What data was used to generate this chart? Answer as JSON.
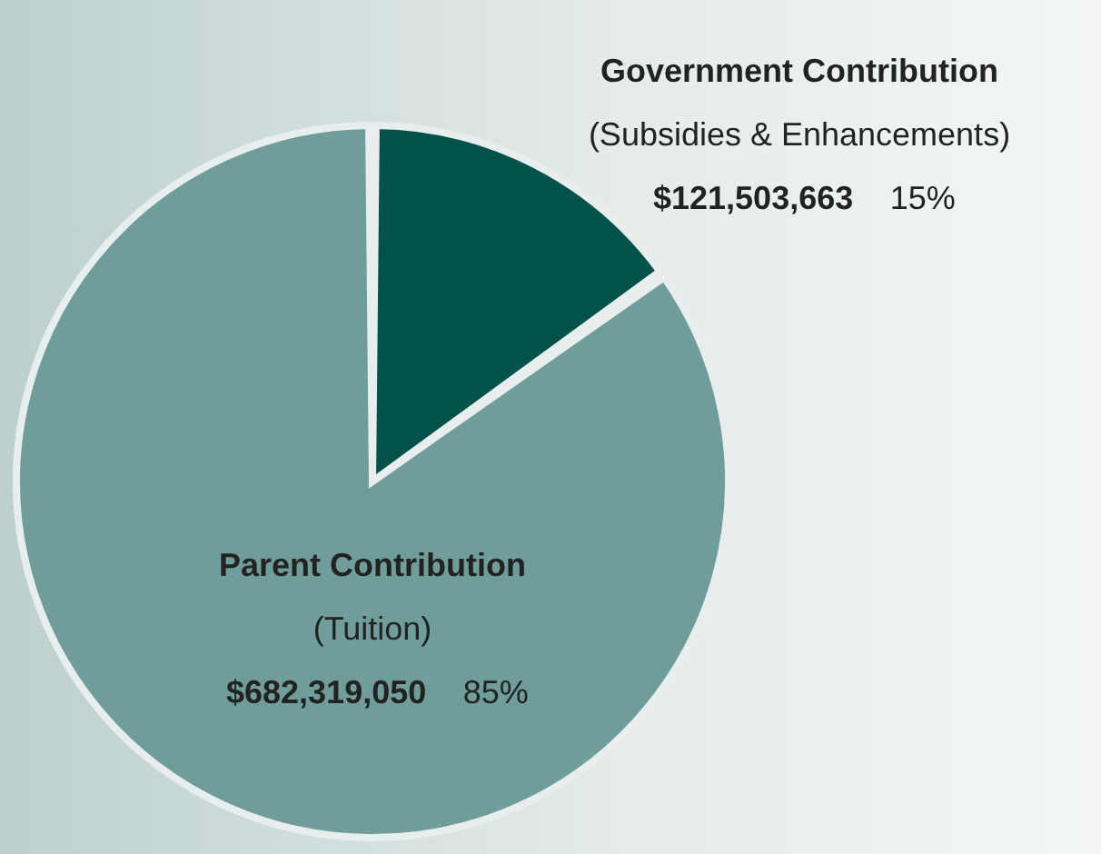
{
  "chart_data": {
    "type": "pie",
    "categories": [
      "Government Contribution",
      "Parent Contribution"
    ],
    "values": [
      121503663,
      682319050
    ],
    "colors": [
      "#00524b",
      "#6f9e9a"
    ],
    "value_labels": [
      "$121,503,663 15%",
      "$682,319,050 85%"
    ],
    "annotations": [
      "(Subsidies & Enhancements)",
      "(Tuition)"
    ]
  }
}
